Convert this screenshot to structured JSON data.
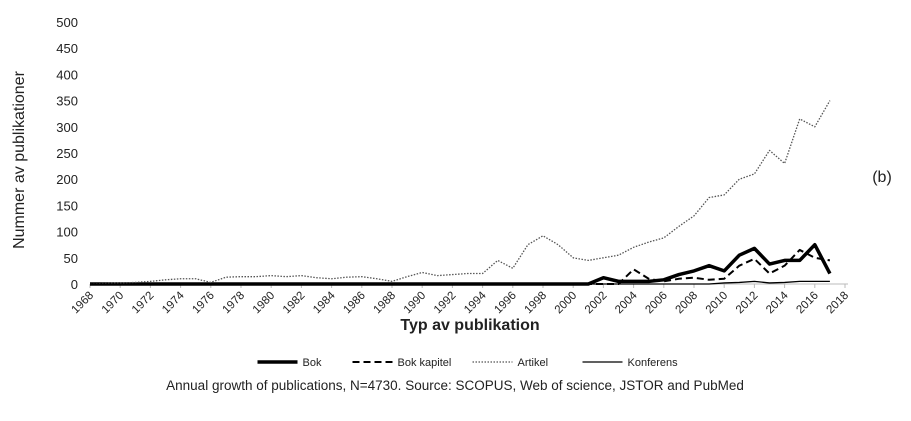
{
  "chart_data": {
    "type": "line",
    "x_label": "Typ av publikation",
    "y_label": "Nummer av publikationer",
    "annotation": "(b)",
    "caption": "Annual growth of publications, N=4730. Source: SCOPUS, Web of science, JSTOR and PubMed",
    "x": [
      1968,
      1969,
      1970,
      1971,
      1972,
      1973,
      1974,
      1975,
      1976,
      1977,
      1978,
      1979,
      1980,
      1981,
      1982,
      1983,
      1984,
      1985,
      1986,
      1987,
      1988,
      1989,
      1990,
      1991,
      1992,
      1993,
      1994,
      1995,
      1996,
      1997,
      1998,
      1999,
      2000,
      2001,
      2002,
      2003,
      2004,
      2005,
      2006,
      2007,
      2008,
      2009,
      2010,
      2011,
      2012,
      2013,
      2014,
      2015,
      2016,
      2017
    ],
    "series": [
      {
        "name": "Bok",
        "color": "#000000",
        "width": 3.5,
        "dash": "none",
        "values": [
          0,
          0,
          0,
          0,
          0,
          0,
          0,
          0,
          0,
          0,
          0,
          0,
          0,
          0,
          0,
          0,
          0,
          0,
          0,
          0,
          0,
          0,
          0,
          0,
          0,
          0,
          0,
          0,
          0,
          0,
          0,
          0,
          0,
          0,
          12,
          5,
          5,
          5,
          8,
          18,
          25,
          35,
          25,
          55,
          68,
          38,
          45,
          45,
          75,
          20
        ]
      },
      {
        "name": "Bok kapitel",
        "color": "#000000",
        "width": 2,
        "dash": "7 4",
        "values": [
          0,
          0,
          0,
          0,
          0,
          0,
          0,
          0,
          0,
          0,
          0,
          0,
          0,
          0,
          0,
          0,
          0,
          0,
          0,
          0,
          0,
          0,
          0,
          0,
          0,
          0,
          0,
          0,
          0,
          0,
          0,
          0,
          0,
          0,
          0,
          0,
          28,
          10,
          5,
          10,
          12,
          8,
          10,
          35,
          48,
          20,
          35,
          65,
          50,
          45
        ]
      },
      {
        "name": "Artikel",
        "color": "#555555",
        "width": 1.3,
        "dash": "1.5 1.5",
        "values": [
          0,
          1,
          2,
          3,
          5,
          8,
          10,
          10,
          3,
          13,
          14,
          14,
          16,
          14,
          16,
          12,
          10,
          13,
          14,
          10,
          5,
          14,
          22,
          16,
          18,
          20,
          20,
          45,
          30,
          75,
          92,
          75,
          50,
          45,
          50,
          55,
          70,
          80,
          88,
          110,
          130,
          165,
          170,
          200,
          210,
          255,
          230,
          315,
          300,
          350
        ]
      },
      {
        "name": "Konferens",
        "color": "#000000",
        "width": 1.3,
        "dash": "none",
        "values": [
          0,
          0,
          0,
          0,
          0,
          0,
          0,
          0,
          0,
          0,
          0,
          0,
          0,
          0,
          0,
          0,
          0,
          0,
          0,
          0,
          0,
          0,
          0,
          0,
          0,
          0,
          0,
          0,
          0,
          0,
          0,
          0,
          0,
          0,
          0,
          0,
          0,
          0,
          0,
          0,
          0,
          0,
          2,
          3,
          5,
          2,
          3,
          5,
          5,
          5
        ]
      }
    ],
    "xlim": [
      1968,
      2018
    ],
    "xticks": [
      1968,
      1970,
      1972,
      1974,
      1976,
      1978,
      1980,
      1982,
      1984,
      1986,
      1988,
      1990,
      1992,
      1994,
      1996,
      1998,
      2000,
      2002,
      2004,
      2006,
      2008,
      2010,
      2012,
      2014,
      2016,
      2018
    ],
    "ylim": [
      0,
      500
    ],
    "yticks": [
      0,
      50,
      100,
      150,
      200,
      250,
      300,
      350,
      400,
      450,
      500
    ],
    "grid": false,
    "legend": "bottom"
  }
}
